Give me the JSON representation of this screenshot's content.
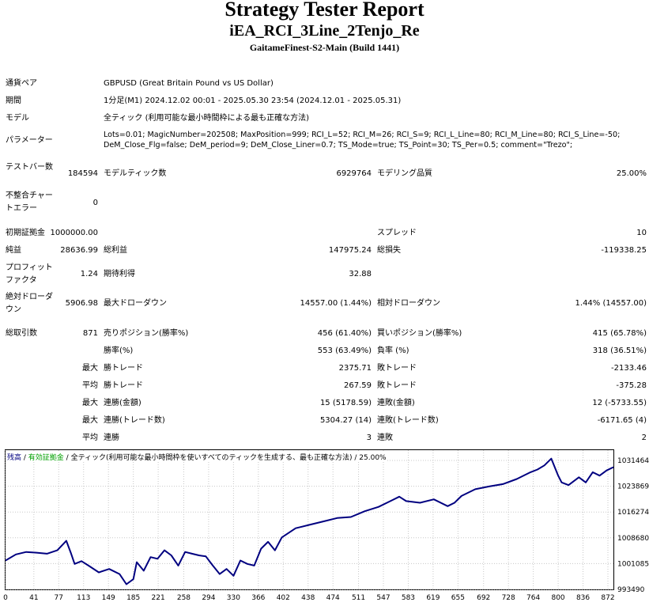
{
  "report": {
    "title": "Strategy Tester Report",
    "ea_name": "iEA_RCI_3Line_2Tenjo_Re",
    "server": "GaitameFinest-S2-Main (Build 1441)"
  },
  "info": {
    "pair_label": "通貨ペア",
    "pair_value": "GBPUSD (Great Britain Pound vs US Dollar)",
    "period_label": "期間",
    "period_value": "1分足(M1) 2024.12.02 00:01 - 2025.05.30 23:54 (2024.12.01 - 2025.05.31)",
    "model_label": "モデル",
    "model_value": "全ティック (利用可能な最小時間枠による最も正確な方法)",
    "params_label": "パラメーター",
    "params_line1": "Lots=0.01; MagicNumber=202508; MaxPosition=999; RCI_L=52; RCI_M=26; RCI_S=9; RCI_L_Line=80; RCI_M_Line=80; RCI_S_Line=-50;",
    "params_line2": "DeM_Close_Flg=false; DeM_period=9; DeM_Close_Liner=0.7; TS_Mode=true; TS_Point=30; TS_Per=0.5; comment=\"Trezo\";"
  },
  "stats": {
    "bars_label": "テストバー数",
    "bars_value": "184594",
    "ticks_label": "モデルティック数",
    "ticks_value": "6929764",
    "quality_label": "モデリング品質",
    "quality_value": "25.00%",
    "mismatch_label": "不整合チャートエラー",
    "mismatch_value": "0",
    "deposit_label": "初期証拠金",
    "deposit_value": "1000000.00",
    "spread_label": "スプレッド",
    "spread_value": "10",
    "net_label": "純益",
    "net_value": "28636.99",
    "gross_profit_label": "総利益",
    "gross_profit_value": "147975.24",
    "gross_loss_label": "総損失",
    "gross_loss_value": "-119338.25",
    "pf_label": "プロフィットファクタ",
    "pf_value": "1.24",
    "expected_label": "期待利得",
    "expected_value": "32.88",
    "abs_dd_label": "絶対ドローダウン",
    "abs_dd_value": "5906.98",
    "max_dd_label": "最大ドローダウン",
    "max_dd_value": "14557.00 (1.44%)",
    "rel_dd_label": "相対ドローダウン",
    "rel_dd_value": "1.44% (14557.00)",
    "total_trades_label": "総取引数",
    "total_trades_value": "871",
    "short_label": "売りポジション(勝率%)",
    "short_value": "456 (61.40%)",
    "long_label": "買いポジション(勝率%)",
    "long_value": "415 (65.78%)",
    "win_rate_label": "勝率(%)",
    "win_rate_value": "553 (63.49%)",
    "loss_rate_label": "負率 (%)",
    "loss_rate_value": "318 (36.51%)",
    "max1": "最大",
    "max_win_label": "勝トレード",
    "max_win_value": "2375.71",
    "max_loss_label": "敗トレード",
    "max_loss_value": "-2133.46",
    "avg1": "平均",
    "avg_win_label": "勝トレード",
    "avg_win_value": "267.59",
    "avg_loss_label": "敗トレード",
    "avg_loss_value": "-375.28",
    "max2": "最大",
    "cons_win_amt_label": "連勝(金額)",
    "cons_win_amt_value": "15 (5178.59)",
    "cons_loss_amt_label": "連敗(金額)",
    "cons_loss_amt_value": "12 (-5733.55)",
    "max3": "最大",
    "cons_win_cnt_label": "連勝(トレード数)",
    "cons_win_cnt_value": "5304.27 (14)",
    "cons_loss_cnt_label": "連敗(トレード数)",
    "cons_loss_cnt_value": "-6171.65 (4)",
    "avg2": "平均",
    "avg_cons_win_label": "連勝",
    "avg_cons_win_value": "3",
    "avg_cons_loss_label": "連敗",
    "avg_cons_loss_value": "2"
  },
  "chart_legend": {
    "balance": "残高",
    "sep1": " / ",
    "margin": "有効証拠金",
    "sep2": " / ",
    "mode": "全ティック(利用可能な最小時間枠を使いすべてのティックを生成する、最も正確な方法)",
    "quality": " / 25.00%"
  },
  "colors": {
    "balance": "#000080",
    "equity": "#00a000",
    "grid": "#c8c8c8"
  },
  "chart_data": {
    "type": "line",
    "title": "",
    "xlabel": "",
    "ylabel": "",
    "x_ticks": [
      0,
      41,
      77,
      113,
      149,
      185,
      221,
      258,
      294,
      330,
      366,
      402,
      438,
      474,
      511,
      547,
      583,
      619,
      655,
      692,
      728,
      764,
      800,
      836,
      872
    ],
    "y_ticks": [
      993490,
      1001085,
      1008680,
      1016274,
      1023869,
      1031464
    ],
    "xlim": [
      0,
      880
    ],
    "ylim": [
      993490,
      1034500
    ],
    "series": [
      {
        "name": "残高",
        "x": [
          0,
          15,
          30,
          45,
          60,
          75,
          88,
          95,
          100,
          110,
          120,
          135,
          150,
          165,
          175,
          185,
          190,
          200,
          210,
          220,
          230,
          240,
          250,
          260,
          270,
          280,
          290,
          300,
          310,
          320,
          330,
          340,
          350,
          360,
          370,
          380,
          390,
          400,
          420,
          440,
          460,
          480,
          500,
          520,
          540,
          560,
          570,
          580,
          600,
          620,
          640,
          650,
          660,
          680,
          700,
          720,
          740,
          760,
          770,
          780,
          790,
          800,
          805,
          815,
          830,
          840,
          850,
          860,
          870,
          880
        ],
        "y": [
          1002000,
          1003800,
          1004500,
          1004300,
          1004000,
          1005000,
          1007800,
          1004000,
          1001000,
          1001800,
          1000500,
          998500,
          999500,
          998000,
          995000,
          996500,
          1001500,
          999000,
          1003000,
          1002500,
          1005000,
          1003500,
          1000500,
          1004500,
          1004000,
          1003500,
          1003200,
          1000500,
          998000,
          999500,
          997500,
          1002000,
          1001000,
          1000500,
          1005500,
          1007500,
          1005000,
          1008800,
          1011500,
          1012500,
          1013500,
          1014500,
          1014800,
          1016500,
          1017800,
          1019800,
          1020800,
          1019500,
          1019000,
          1020000,
          1018000,
          1019000,
          1021000,
          1023000,
          1023800,
          1024500,
          1026000,
          1028000,
          1028800,
          1030000,
          1032000,
          1027000,
          1025000,
          1024200,
          1026500,
          1025000,
          1028000,
          1027000,
          1028500,
          1029500
        ]
      }
    ]
  }
}
